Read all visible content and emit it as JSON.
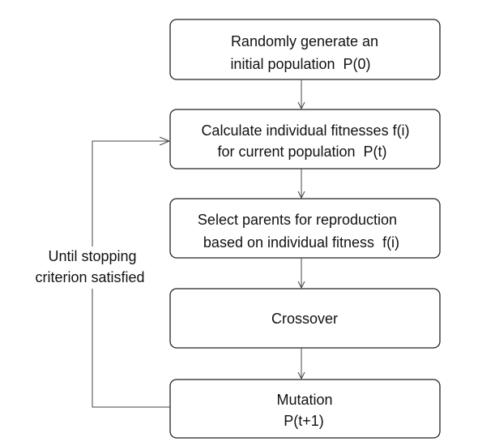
{
  "nodes": [
    {
      "id": "init",
      "lines": [
        "Randomly generate an",
        "initial population  P(0)"
      ]
    },
    {
      "id": "fitness",
      "lines": [
        "Calculate individual fitnesses f(i)",
        "for current population  P(t)"
      ]
    },
    {
      "id": "select",
      "lines": [
        "Select parents for reproduction",
        "based on individual fitness  f(i)"
      ]
    },
    {
      "id": "crossover",
      "lines": [
        "Crossover"
      ]
    },
    {
      "id": "mutation",
      "lines": [
        "Mutation",
        "P(t+1)"
      ]
    }
  ],
  "loop_label": [
    "Until stopping",
    "criterion satisfied"
  ]
}
